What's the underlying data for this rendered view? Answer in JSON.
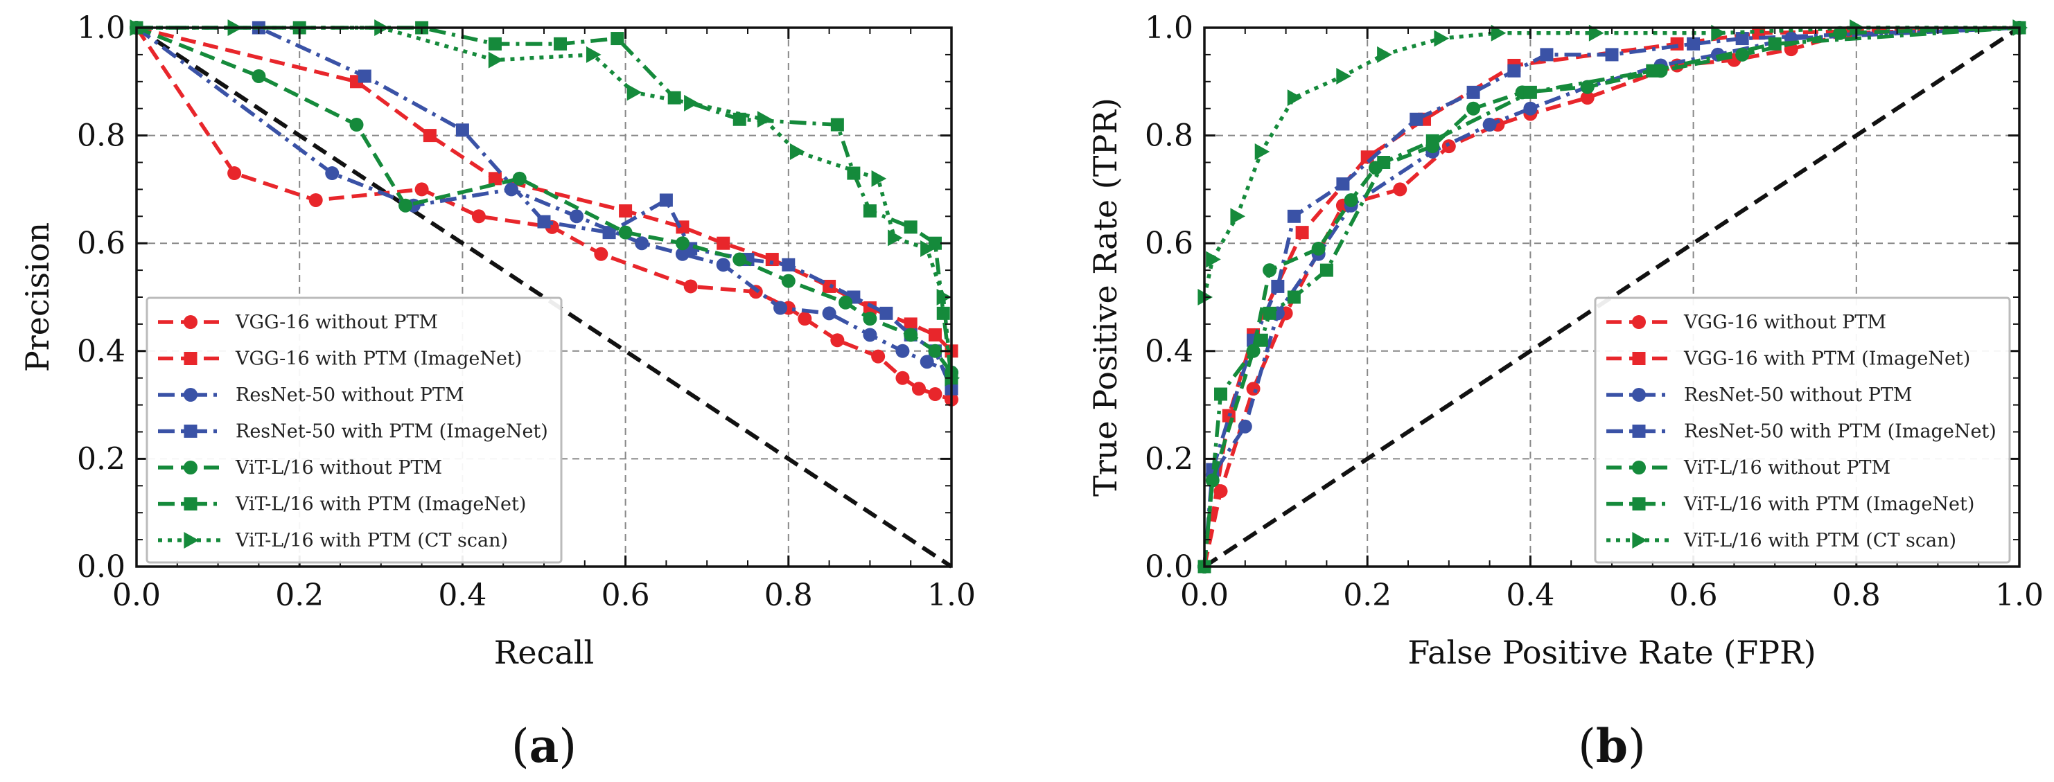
{
  "figure": {
    "captions": [
      "a",
      "b"
    ]
  },
  "legend_entries": [
    "VGG-16 without PTM",
    "VGG-16 with PTM (ImageNet)",
    "ResNet-50 without PTM",
    "ResNet-50 with PTM (ImageNet)",
    "ViT-L/16 without PTM",
    "ViT-L/16 with PTM (ImageNet)",
    "ViT-L/16 with PTM (CT scan)"
  ],
  "colors": {
    "red": "#e8262b",
    "blue": "#3a52a6",
    "green": "#158a3b",
    "diag": "#111111",
    "grid": "#888888"
  },
  "chart_data": [
    {
      "type": "line",
      "panel": "a",
      "caption": "(a)",
      "title": "",
      "xlabel": "Recall",
      "ylabel": "Precision",
      "xlim": [
        0,
        1
      ],
      "ylim": [
        0,
        1
      ],
      "xticks": [
        "0.0",
        "0.2",
        "0.4",
        "0.6",
        "0.8",
        "1.0"
      ],
      "yticks": [
        "0.0",
        "0.2",
        "0.4",
        "0.6",
        "0.8",
        "1.0"
      ],
      "grid": true,
      "legend_position": "lower-left",
      "diagonal": {
        "x": [
          0,
          1
        ],
        "y": [
          1,
          0
        ],
        "style": "dashed"
      },
      "series": [
        {
          "name": "VGG-16 without PTM",
          "color": "red",
          "dash": "dashed",
          "marker": "circle",
          "x": [
            0.0,
            0.12,
            0.22,
            0.35,
            0.42,
            0.51,
            0.57,
            0.68,
            0.76,
            0.8,
            0.82,
            0.86,
            0.91,
            0.94,
            0.96,
            0.98,
            1.0
          ],
          "y": [
            1.0,
            0.73,
            0.68,
            0.7,
            0.65,
            0.63,
            0.58,
            0.52,
            0.51,
            0.48,
            0.46,
            0.42,
            0.39,
            0.35,
            0.33,
            0.32,
            0.31
          ]
        },
        {
          "name": "VGG-16 with PTM (ImageNet)",
          "color": "red",
          "dash": "dashed",
          "marker": "square",
          "x": [
            0.0,
            0.27,
            0.36,
            0.44,
            0.6,
            0.67,
            0.72,
            0.78,
            0.85,
            0.9,
            0.95,
            0.98,
            1.0
          ],
          "y": [
            1.0,
            0.9,
            0.8,
            0.72,
            0.66,
            0.63,
            0.6,
            0.57,
            0.52,
            0.48,
            0.45,
            0.43,
            0.4
          ]
        },
        {
          "name": "ResNet-50 without PTM",
          "color": "blue",
          "dash": "dashdot",
          "marker": "circle",
          "x": [
            0.0,
            0.24,
            0.34,
            0.46,
            0.54,
            0.62,
            0.67,
            0.72,
            0.79,
            0.85,
            0.9,
            0.94,
            0.97,
            1.0
          ],
          "y": [
            1.0,
            0.73,
            0.67,
            0.7,
            0.65,
            0.6,
            0.58,
            0.56,
            0.48,
            0.47,
            0.43,
            0.4,
            0.38,
            0.36
          ]
        },
        {
          "name": "ResNet-50 with PTM (ImageNet)",
          "color": "blue",
          "dash": "dashdot",
          "marker": "square",
          "x": [
            0.0,
            0.15,
            0.28,
            0.4,
            0.5,
            0.58,
            0.65,
            0.68,
            0.75,
            0.8,
            0.88,
            0.92,
            0.95,
            0.98,
            1.0
          ],
          "y": [
            1.0,
            1.0,
            0.91,
            0.81,
            0.64,
            0.62,
            0.68,
            0.59,
            0.57,
            0.56,
            0.5,
            0.47,
            0.43,
            0.4,
            0.33
          ]
        },
        {
          "name": "ViT-L/16 without PTM",
          "color": "green",
          "dash": "dashed",
          "marker": "circle",
          "x": [
            0.0,
            0.15,
            0.27,
            0.33,
            0.47,
            0.6,
            0.67,
            0.74,
            0.8,
            0.87,
            0.9,
            0.95,
            0.98,
            1.0
          ],
          "y": [
            1.0,
            0.91,
            0.82,
            0.67,
            0.72,
            0.62,
            0.6,
            0.57,
            0.53,
            0.49,
            0.46,
            0.43,
            0.4,
            0.36
          ]
        },
        {
          "name": "ViT-L/16 with PTM (ImageNet)",
          "color": "green",
          "dash": "dashdot",
          "marker": "square",
          "x": [
            0.0,
            0.2,
            0.35,
            0.44,
            0.52,
            0.59,
            0.66,
            0.74,
            0.86,
            0.88,
            0.9,
            0.95,
            0.98,
            0.99,
            1.0
          ],
          "y": [
            1.0,
            1.0,
            1.0,
            0.97,
            0.97,
            0.98,
            0.87,
            0.83,
            0.82,
            0.73,
            0.66,
            0.63,
            0.6,
            0.47,
            0.35
          ]
        },
        {
          "name": "ViT-L/16 with PTM (CT scan)",
          "color": "green",
          "dash": "dotted",
          "marker": "triangle",
          "x": [
            0.0,
            0.12,
            0.3,
            0.44,
            0.56,
            0.61,
            0.68,
            0.77,
            0.81,
            0.91,
            0.93,
            0.97,
            0.99,
            1.0
          ],
          "y": [
            1.0,
            1.0,
            1.0,
            0.94,
            0.95,
            0.88,
            0.86,
            0.83,
            0.77,
            0.72,
            0.61,
            0.59,
            0.5,
            0.35
          ]
        }
      ]
    },
    {
      "type": "line",
      "panel": "b",
      "caption": "(b)",
      "title": "",
      "xlabel": "False Positive Rate (FPR)",
      "ylabel": "True Positive Rate (TPR)",
      "xlim": [
        0,
        1
      ],
      "ylim": [
        0,
        1
      ],
      "xticks": [
        "0.0",
        "0.2",
        "0.4",
        "0.6",
        "0.8",
        "1.0"
      ],
      "yticks": [
        "0.0",
        "0.2",
        "0.4",
        "0.6",
        "0.8",
        "1.0"
      ],
      "grid": true,
      "legend_position": "lower-right",
      "diagonal": {
        "x": [
          0,
          1
        ],
        "y": [
          0,
          1
        ],
        "style": "dashed"
      },
      "series": [
        {
          "name": "VGG-16 without PTM",
          "color": "red",
          "dash": "dashed",
          "marker": "circle",
          "x": [
            0.0,
            0.02,
            0.06,
            0.1,
            0.17,
            0.24,
            0.3,
            0.36,
            0.4,
            0.47,
            0.58,
            0.65,
            0.72,
            0.79,
            1.0
          ],
          "y": [
            0.0,
            0.14,
            0.33,
            0.47,
            0.67,
            0.7,
            0.78,
            0.82,
            0.84,
            0.87,
            0.93,
            0.94,
            0.96,
            0.99,
            1.0
          ]
        },
        {
          "name": "VGG-16 with PTM (ImageNet)",
          "color": "red",
          "dash": "dashed",
          "marker": "square",
          "x": [
            0.0,
            0.03,
            0.06,
            0.12,
            0.2,
            0.27,
            0.38,
            0.58,
            0.68,
            1.0
          ],
          "y": [
            0.0,
            0.28,
            0.43,
            0.62,
            0.76,
            0.83,
            0.93,
            0.97,
            0.99,
            1.0
          ]
        },
        {
          "name": "ResNet-50 without PTM",
          "color": "blue",
          "dash": "dashdot",
          "marker": "circle",
          "x": [
            0.0,
            0.01,
            0.05,
            0.09,
            0.14,
            0.18,
            0.28,
            0.35,
            0.4,
            0.47,
            0.56,
            0.63,
            0.72,
            1.0
          ],
          "y": [
            0.0,
            0.17,
            0.26,
            0.47,
            0.58,
            0.67,
            0.77,
            0.82,
            0.85,
            0.89,
            0.93,
            0.95,
            0.98,
            1.0
          ]
        },
        {
          "name": "ResNet-50 with PTM (ImageNet)",
          "color": "blue",
          "dash": "dashdot",
          "marker": "square",
          "x": [
            0.0,
            0.01,
            0.06,
            0.09,
            0.11,
            0.17,
            0.26,
            0.33,
            0.38,
            0.42,
            0.5,
            0.6,
            0.66,
            1.0
          ],
          "y": [
            0.0,
            0.18,
            0.42,
            0.52,
            0.65,
            0.71,
            0.83,
            0.88,
            0.92,
            0.95,
            0.95,
            0.97,
            0.98,
            1.0
          ]
        },
        {
          "name": "ViT-L/16 without PTM",
          "color": "green",
          "dash": "dashed",
          "marker": "circle",
          "x": [
            0.0,
            0.01,
            0.06,
            0.08,
            0.14,
            0.18,
            0.21,
            0.28,
            0.33,
            0.39,
            0.47,
            0.56,
            0.66,
            0.78,
            1.0
          ],
          "y": [
            0.0,
            0.16,
            0.4,
            0.55,
            0.59,
            0.68,
            0.74,
            0.78,
            0.85,
            0.88,
            0.89,
            0.92,
            0.95,
            0.99,
            1.0
          ]
        },
        {
          "name": "ViT-L/16 with PTM (ImageNet)",
          "color": "green",
          "dash": "dashdot",
          "marker": "square",
          "x": [
            0.0,
            0.02,
            0.07,
            0.08,
            0.11,
            0.15,
            0.22,
            0.28,
            0.4,
            0.55,
            0.7,
            1.0
          ],
          "y": [
            0.0,
            0.32,
            0.42,
            0.47,
            0.5,
            0.55,
            0.75,
            0.79,
            0.88,
            0.92,
            0.97,
            1.0
          ]
        },
        {
          "name": "ViT-L/16 with PTM (CT scan)",
          "color": "green",
          "dash": "dotted",
          "marker": "triangle",
          "x": [
            0.0,
            0.01,
            0.04,
            0.07,
            0.11,
            0.17,
            0.22,
            0.29,
            0.36,
            0.48,
            0.63,
            0.8,
            1.0
          ],
          "y": [
            0.5,
            0.57,
            0.65,
            0.77,
            0.87,
            0.91,
            0.95,
            0.98,
            0.99,
            0.99,
            0.99,
            1.0,
            1.0
          ]
        }
      ]
    }
  ]
}
